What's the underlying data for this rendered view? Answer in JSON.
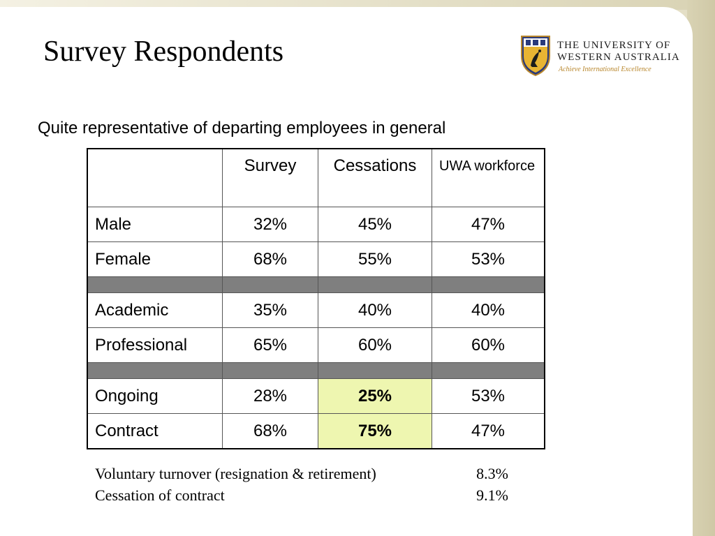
{
  "slide": {
    "title": "Survey Respondents",
    "subtitle": "Quite representative of departing employees in general"
  },
  "logo": {
    "line1": "THE UNIVERSITY OF",
    "line2": "WESTERN AUSTRALIA",
    "motto": "Achieve International Excellence"
  },
  "table": {
    "headers": [
      "",
      "Survey",
      "Cessations",
      "UWA workforce"
    ],
    "rows": [
      {
        "label": "Male",
        "survey": "32%",
        "cessations": "45%",
        "workforce": "47%"
      },
      {
        "label": "Female",
        "survey": "68%",
        "cessations": "55%",
        "workforce": "53%"
      },
      {
        "label": "Academic",
        "survey": "35%",
        "cessations": "40%",
        "workforce": "40%"
      },
      {
        "label": "Professional",
        "survey": "65%",
        "cessations": "60%",
        "workforce": "60%"
      },
      {
        "label": "Ongoing",
        "survey": "28%",
        "cessations": "25%",
        "workforce": "53%"
      },
      {
        "label": "Contract",
        "survey": "68%",
        "cessations": "75%",
        "workforce": "47%"
      }
    ]
  },
  "notes": [
    {
      "label": "Voluntary turnover (resignation & retirement)",
      "value": "8.3%"
    },
    {
      "label": "Cessation of contract",
      "value": "9.1%"
    }
  ],
  "colors": {
    "highlight": "#eef6b0",
    "separator": "#7f7f7f",
    "motto": "#b8862b"
  }
}
